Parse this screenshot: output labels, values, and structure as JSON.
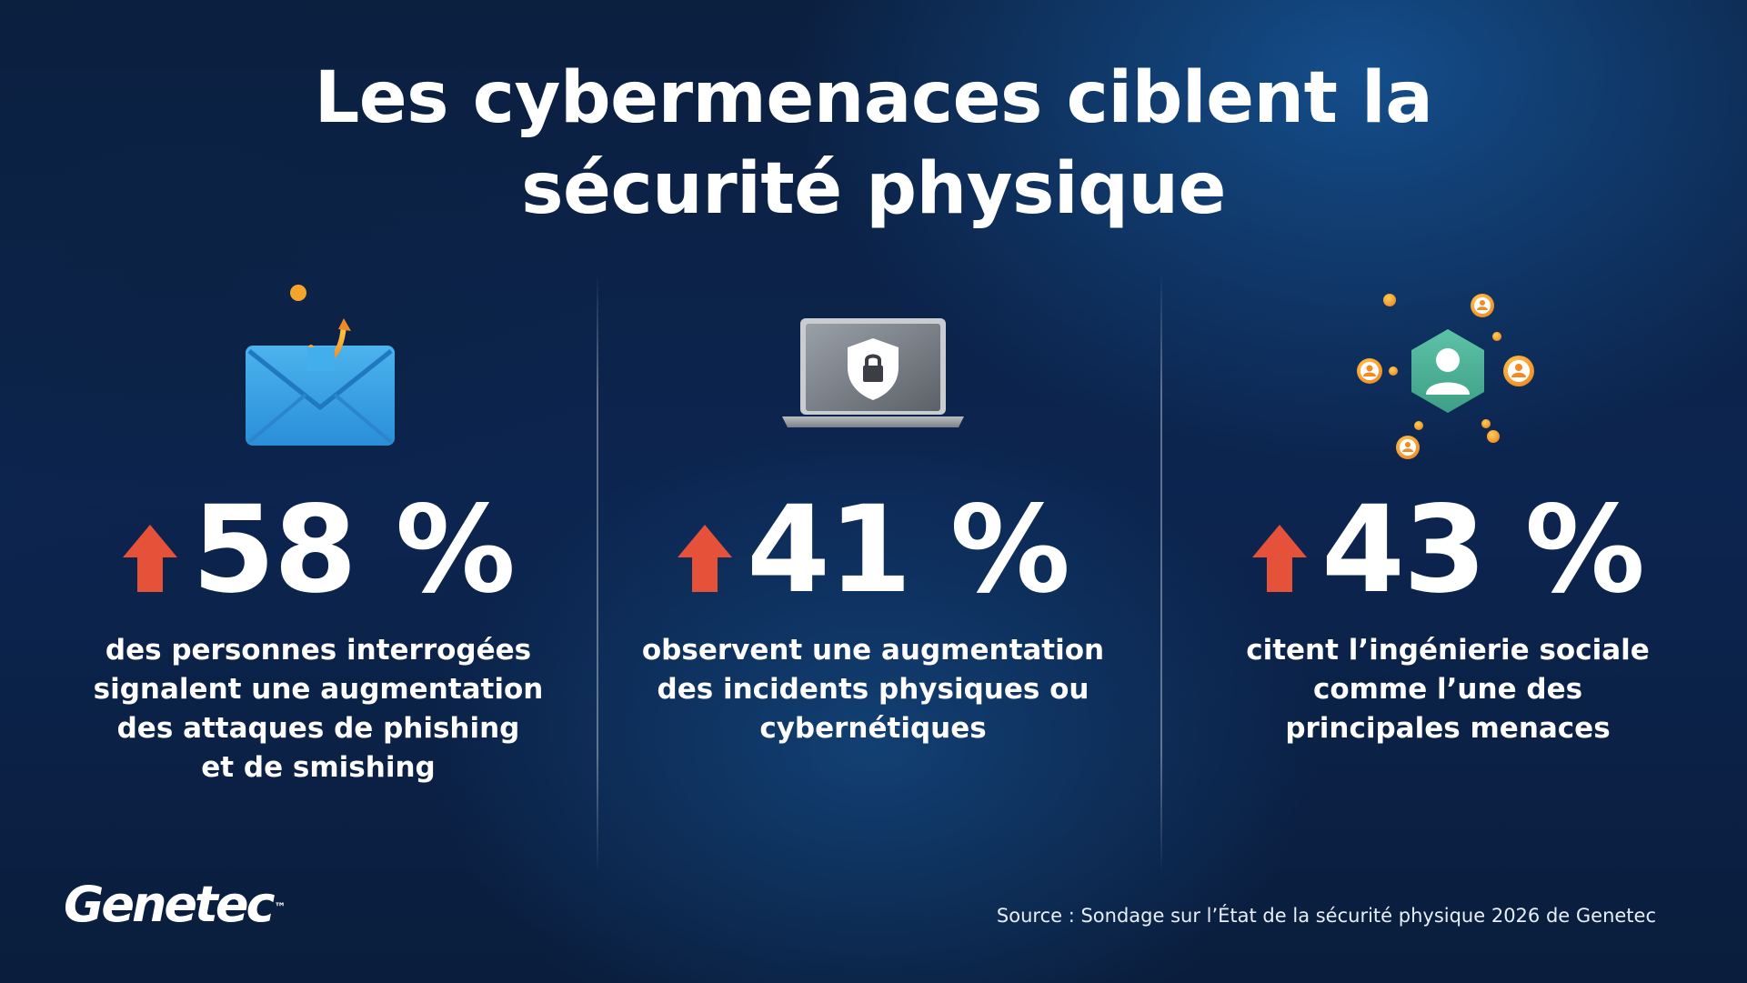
{
  "title": {
    "line1": "Les cybermenaces ciblent la",
    "line2": "sécurité physique"
  },
  "colors": {
    "arrow": "#e6513a",
    "accent_teal": "#4fb39a",
    "accent_orange": "#f3a533",
    "envelope_blue": "#3aa3e3"
  },
  "stats": [
    {
      "icon": "phishing-envelope-icon",
      "value": "58 %",
      "description": [
        "des personnes interrogées",
        "signalent une augmentation",
        "des attaques de phishing",
        "et de smishing"
      ]
    },
    {
      "icon": "laptop-shield-lock-icon",
      "value": "41 %",
      "description": [
        "observent une augmentation",
        "des incidents physiques ou",
        "cybernétiques"
      ]
    },
    {
      "icon": "social-network-people-icon",
      "value": "43 %",
      "description": [
        "citent l’ingénierie sociale",
        "comme l’une des",
        "principales menaces"
      ]
    }
  ],
  "logo": {
    "text": "Genetec",
    "trademark": "™"
  },
  "source": "Source : Sondage sur l’État de la sécurité physique 2026 de Genetec"
}
